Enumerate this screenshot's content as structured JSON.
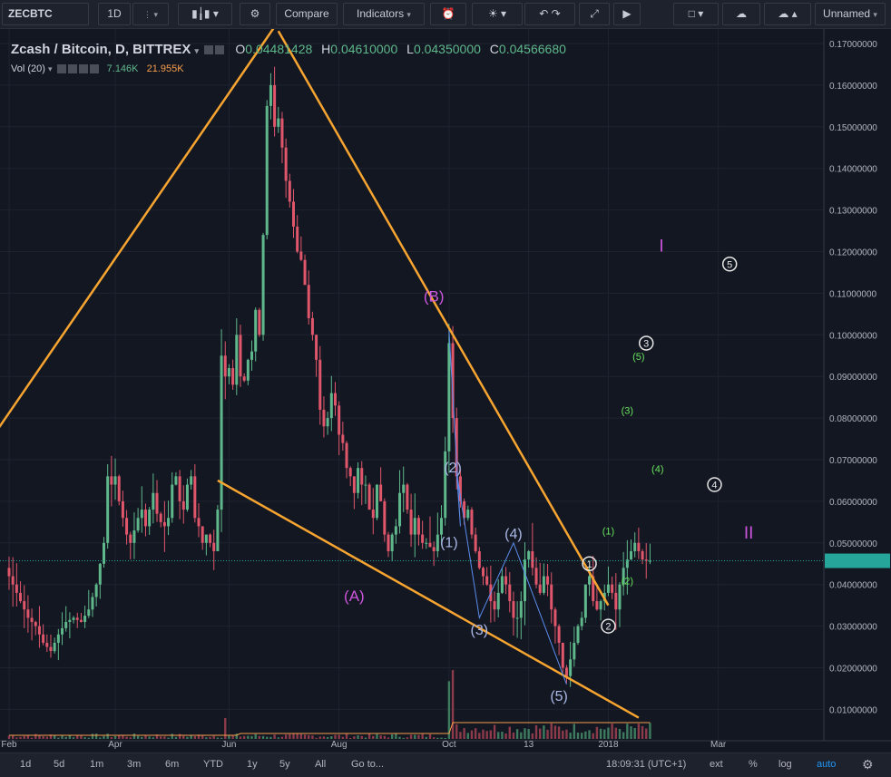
{
  "toolbar": {
    "symbol": "ZECBTC",
    "interval": "1D",
    "compare_label": "Compare",
    "indicators_label": "Indicators",
    "layout_name": "Unnamed"
  },
  "legend": {
    "title": "Zcash / Bitcoin, D, BITTREX",
    "open_label": "O",
    "open": "0.04481428",
    "high_label": "H",
    "high": "0.04610000",
    "low_label": "L",
    "low": "0.04350000",
    "close_label": "C",
    "close": "0.04566680",
    "vol_label": "Vol (20)",
    "vol_value": "7.146K",
    "vol_ma": "21.955K"
  },
  "bottom_bar": {
    "ranges": [
      "1d",
      "5d",
      "1m",
      "3m",
      "6m",
      "YTD",
      "1y",
      "5y",
      "All"
    ],
    "goto": "Go to...",
    "clock": "18:09:31 (UTC+1)",
    "options": [
      "ext",
      "%",
      "log",
      "auto"
    ]
  },
  "colors": {
    "background": "#131722",
    "up": "#5fb88c",
    "down": "#e0566b",
    "trendline": "#f7a530",
    "wave_b": "#cc55dd",
    "wave_sub": "#aab8e6",
    "green_wave": "#67e25c"
  },
  "chart_data": {
    "type": "candlestick",
    "title": "Zcash / Bitcoin, D, BITTREX",
    "ylim": [
      0.008,
      0.178
    ],
    "y_ticks": [
      "0.17000000",
      "0.16000000",
      "0.15000000",
      "0.14000000",
      "0.13000000",
      "0.12000000",
      "0.11000000",
      "0.10000000",
      "0.09000000",
      "0.08000000",
      "0.07000000",
      "0.06000000",
      "0.05000000",
      "0.04000000",
      "0.03000000",
      "0.02000000",
      "0.01000000"
    ],
    "x_ticks": [
      "Feb",
      "Apr",
      "Jun",
      "Aug",
      "Oct",
      "13",
      "2018",
      "Mar"
    ],
    "last_price": 0.0457,
    "price_path": [
      [
        0,
        0.044
      ],
      [
        2,
        0.04
      ],
      [
        4,
        0.036
      ],
      [
        6,
        0.032
      ],
      [
        8,
        0.03
      ],
      [
        10,
        0.026
      ],
      [
        12,
        0.024
      ],
      [
        14,
        0.028
      ],
      [
        16,
        0.031
      ],
      [
        18,
        0.032
      ],
      [
        20,
        0.031
      ],
      [
        22,
        0.034
      ],
      [
        24,
        0.04
      ],
      [
        26,
        0.05
      ],
      [
        27,
        0.066
      ],
      [
        28,
        0.064
      ],
      [
        29,
        0.066
      ],
      [
        30,
        0.06
      ],
      [
        31,
        0.056
      ],
      [
        32,
        0.052
      ],
      [
        33,
        0.05
      ],
      [
        34,
        0.053
      ],
      [
        35,
        0.056
      ],
      [
        36,
        0.058
      ],
      [
        37,
        0.054
      ],
      [
        38,
        0.058
      ],
      [
        39,
        0.062
      ],
      [
        40,
        0.057
      ],
      [
        41,
        0.055
      ],
      [
        42,
        0.054
      ],
      [
        43,
        0.056
      ],
      [
        44,
        0.064
      ],
      [
        45,
        0.066
      ],
      [
        46,
        0.06
      ],
      [
        47,
        0.058
      ],
      [
        48,
        0.064
      ],
      [
        49,
        0.066
      ],
      [
        50,
        0.056
      ],
      [
        51,
        0.054
      ],
      [
        52,
        0.05
      ],
      [
        53,
        0.052
      ],
      [
        54,
        0.05
      ],
      [
        55,
        0.048
      ],
      [
        56,
        0.058
      ],
      [
        57,
        0.095
      ],
      [
        58,
        0.09
      ],
      [
        59,
        0.092
      ],
      [
        60,
        0.088
      ],
      [
        61,
        0.1
      ],
      [
        62,
        0.09
      ],
      [
        63,
        0.089
      ],
      [
        64,
        0.094
      ],
      [
        65,
        0.096
      ],
      [
        66,
        0.106
      ],
      [
        67,
        0.1
      ],
      [
        68,
        0.124
      ],
      [
        69,
        0.155
      ],
      [
        70,
        0.16
      ],
      [
        71,
        0.15
      ],
      [
        72,
        0.152
      ],
      [
        73,
        0.145
      ],
      [
        74,
        0.137
      ],
      [
        75,
        0.132
      ],
      [
        76,
        0.126
      ],
      [
        77,
        0.12
      ],
      [
        78,
        0.118
      ],
      [
        79,
        0.112
      ],
      [
        80,
        0.104
      ],
      [
        81,
        0.1
      ],
      [
        82,
        0.094
      ],
      [
        83,
        0.082
      ],
      [
        84,
        0.078
      ],
      [
        85,
        0.08
      ],
      [
        86,
        0.086
      ],
      [
        87,
        0.083
      ],
      [
        88,
        0.076
      ],
      [
        89,
        0.074
      ],
      [
        90,
        0.068
      ],
      [
        91,
        0.066
      ],
      [
        92,
        0.062
      ],
      [
        93,
        0.068
      ],
      [
        94,
        0.064
      ],
      [
        95,
        0.064
      ],
      [
        96,
        0.058
      ],
      [
        97,
        0.056
      ],
      [
        98,
        0.064
      ],
      [
        99,
        0.06
      ],
      [
        100,
        0.052
      ],
      [
        101,
        0.048
      ],
      [
        102,
        0.052
      ],
      [
        103,
        0.054
      ],
      [
        104,
        0.062
      ],
      [
        105,
        0.064
      ],
      [
        106,
        0.058
      ],
      [
        107,
        0.052
      ],
      [
        108,
        0.056
      ],
      [
        109,
        0.052
      ],
      [
        110,
        0.05
      ],
      [
        111,
        0.05
      ],
      [
        112,
        0.049
      ],
      [
        113,
        0.048
      ],
      [
        114,
        0.052
      ],
      [
        115,
        0.056
      ],
      [
        116,
        0.072
      ],
      [
        117,
        0.098
      ],
      [
        118,
        0.08
      ],
      [
        119,
        0.066
      ],
      [
        120,
        0.06
      ],
      [
        121,
        0.056
      ],
      [
        122,
        0.058
      ],
      [
        123,
        0.052
      ],
      [
        124,
        0.048
      ],
      [
        125,
        0.044
      ],
      [
        126,
        0.042
      ],
      [
        127,
        0.04
      ],
      [
        128,
        0.036
      ],
      [
        129,
        0.034
      ],
      [
        130,
        0.038
      ],
      [
        131,
        0.042
      ],
      [
        132,
        0.04
      ],
      [
        133,
        0.036
      ],
      [
        134,
        0.032
      ],
      [
        135,
        0.032
      ],
      [
        136,
        0.036
      ],
      [
        137,
        0.046
      ],
      [
        138,
        0.048
      ],
      [
        139,
        0.044
      ],
      [
        140,
        0.04
      ],
      [
        141,
        0.038
      ],
      [
        142,
        0.042
      ],
      [
        143,
        0.04
      ],
      [
        144,
        0.034
      ],
      [
        145,
        0.03
      ],
      [
        146,
        0.026
      ],
      [
        147,
        0.02
      ],
      [
        148,
        0.018
      ],
      [
        149,
        0.022
      ],
      [
        150,
        0.026
      ],
      [
        151,
        0.03
      ],
      [
        152,
        0.032
      ],
      [
        153,
        0.04
      ],
      [
        154,
        0.042
      ],
      [
        155,
        0.036
      ],
      [
        156,
        0.034
      ],
      [
        157,
        0.036
      ],
      [
        158,
        0.038
      ],
      [
        159,
        0.04
      ],
      [
        160,
        0.038
      ],
      [
        161,
        0.034
      ],
      [
        162,
        0.04
      ],
      [
        163,
        0.044
      ],
      [
        164,
        0.046
      ],
      [
        165,
        0.048
      ],
      [
        166,
        0.05
      ],
      [
        167,
        0.048
      ],
      [
        168,
        0.046
      ],
      [
        169,
        0.0457
      ]
    ],
    "trendlines": [
      {
        "from": [
          -10,
          0.068
        ],
        "to": [
          73,
          0.178
        ]
      },
      {
        "from": [
          71,
          0.173
        ],
        "to": [
          158,
          0.035
        ]
      },
      {
        "from": [
          55,
          0.065
        ],
        "to": [
          166,
          0.008
        ]
      }
    ],
    "annotations": [
      {
        "text": "(B)",
        "at": [
          112,
          0.108
        ],
        "color": "wave_b",
        "size": 17
      },
      {
        "text": "(A)",
        "at": [
          91,
          0.036
        ],
        "color": "wave_b",
        "size": 17
      },
      {
        "text": "I",
        "at": [
          172,
          0.12
        ],
        "color": "wave_b",
        "size": 19
      },
      {
        "text": "II",
        "at": [
          195,
          0.051
        ],
        "color": "wave_b",
        "size": 19
      },
      {
        "text": "(1)",
        "at": [
          116,
          0.049
        ],
        "color": "wave_sub",
        "size": 16
      },
      {
        "text": "(2)",
        "at": [
          117,
          0.067
        ],
        "color": "wave_sub",
        "size": 16
      },
      {
        "text": "(3)",
        "at": [
          124,
          0.028
        ],
        "color": "wave_sub",
        "size": 16
      },
      {
        "text": "(4)",
        "at": [
          133,
          0.051
        ],
        "color": "wave_sub",
        "size": 16
      },
      {
        "text": "(5)",
        "at": [
          145,
          0.012
        ],
        "color": "wave_sub",
        "size": 16
      },
      {
        "text": "(1)",
        "at": [
          158,
          0.052
        ],
        "color": "green_wave",
        "size": 11
      },
      {
        "text": "(2)",
        "at": [
          163,
          0.04
        ],
        "color": "green_wave",
        "size": 11
      },
      {
        "text": "(3)",
        "at": [
          163,
          0.081
        ],
        "color": "green_wave",
        "size": 11
      },
      {
        "text": "(4)",
        "at": [
          171,
          0.067
        ],
        "color": "green_wave",
        "size": 11
      },
      {
        "text": "(5)",
        "at": [
          166,
          0.094
        ],
        "color": "green_wave",
        "size": 11
      }
    ],
    "circled_labels": [
      {
        "text": "1",
        "at": [
          153,
          0.045
        ]
      },
      {
        "text": "2",
        "at": [
          158,
          0.03
        ]
      },
      {
        "text": "3",
        "at": [
          168,
          0.098
        ]
      },
      {
        "text": "4",
        "at": [
          186,
          0.064
        ]
      },
      {
        "text": "5",
        "at": [
          190,
          0.117
        ]
      }
    ],
    "wave_path": [
      [
        116,
        0.101
      ],
      [
        119,
        0.054
      ],
      [
        118,
        0.067
      ],
      [
        124,
        0.032
      ],
      [
        133,
        0.05
      ],
      [
        147,
        0.016
      ]
    ]
  }
}
